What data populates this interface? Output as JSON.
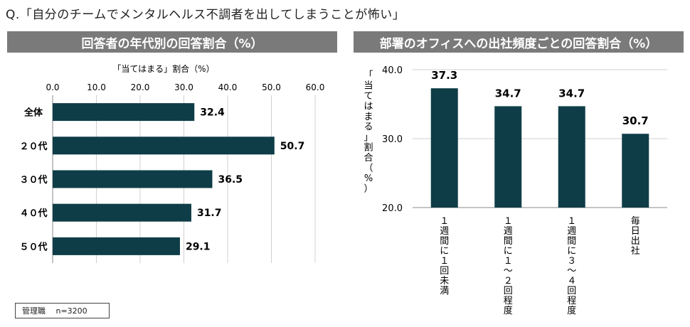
{
  "question": "Q.「自分のチームでメンタルヘルス不調者を出してしまうことが怖い」",
  "note": "管理職　 n=3200",
  "colors": {
    "bar": "#0f3d47",
    "header_bg": "#7a7a7a",
    "gridline": "#d0d0d0"
  },
  "chart_data": [
    {
      "type": "bar",
      "orientation": "horizontal",
      "title": "回答者の年代別の回答割合（%）",
      "xlabel": "「当てはまる」割合（%）",
      "xlim": [
        0,
        60
      ],
      "ticks": [
        "0.0",
        "10.0",
        "20.0",
        "30.0",
        "40.0",
        "50.0",
        "60.0"
      ],
      "tick_values": [
        0,
        10,
        20,
        30,
        40,
        50,
        60
      ],
      "categories": [
        "全体",
        "２０代",
        "３０代",
        "４０代",
        "５０代"
      ],
      "values": [
        32.4,
        50.7,
        36.5,
        31.7,
        29.1
      ],
      "labels": [
        "32.4",
        "50.7",
        "36.5",
        "31.7",
        "29.1"
      ],
      "grid": true
    },
    {
      "type": "bar",
      "orientation": "vertical",
      "title": "部署のオフィスへの出社頻度ごとの回答割合（%）",
      "ylabel": "「当てはまる」割合（%）",
      "ylim": [
        20,
        40
      ],
      "ticks": [
        "20.0",
        "30.0",
        "40.0"
      ],
      "tick_values": [
        20,
        30,
        40
      ],
      "categories": [
        "１週間に１回未満",
        "１週間に１～２回程度",
        "１週間に３～４回程度",
        "毎日出社"
      ],
      "values": [
        37.3,
        34.7,
        34.7,
        30.7
      ],
      "labels": [
        "37.3",
        "34.7",
        "34.7",
        "30.7"
      ],
      "grid": true
    }
  ]
}
